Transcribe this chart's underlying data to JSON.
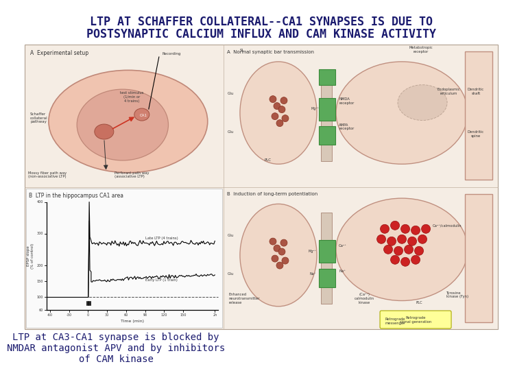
{
  "title_line1": "LTP AT SCHAFFER COLLATERAL--CA1 SYNAPSES IS DUE TO",
  "title_line2": "POSTSYNAPTIC CALCIUM INFLUX AND CAM KINASE ACTIVITY",
  "caption_line1": "LTP at CA3-CA1 synapse is blocked by",
  "caption_line2": "NMDAR antagonist APV and by inhibitors",
  "caption_line3": "of CAM kinase",
  "background_color": "#ffffff",
  "title_color": "#1a1a6e",
  "caption_color": "#1a1a6e",
  "title_fontsize": 12,
  "caption_fontsize": 10,
  "panel_bg": "#f5ede0",
  "panel_edge": "#c8b89a",
  "brain_outer_color": "#f0c8b0",
  "brain_inner_color": "#e0a898",
  "vesicle_color": "#aa4433",
  "pre_color": "#f0ddd0",
  "post_color": "#f0ddd0",
  "receptor_color": "#5a9a5a",
  "ca_color": "#cc2222",
  "graph_bg": "#fafafa"
}
